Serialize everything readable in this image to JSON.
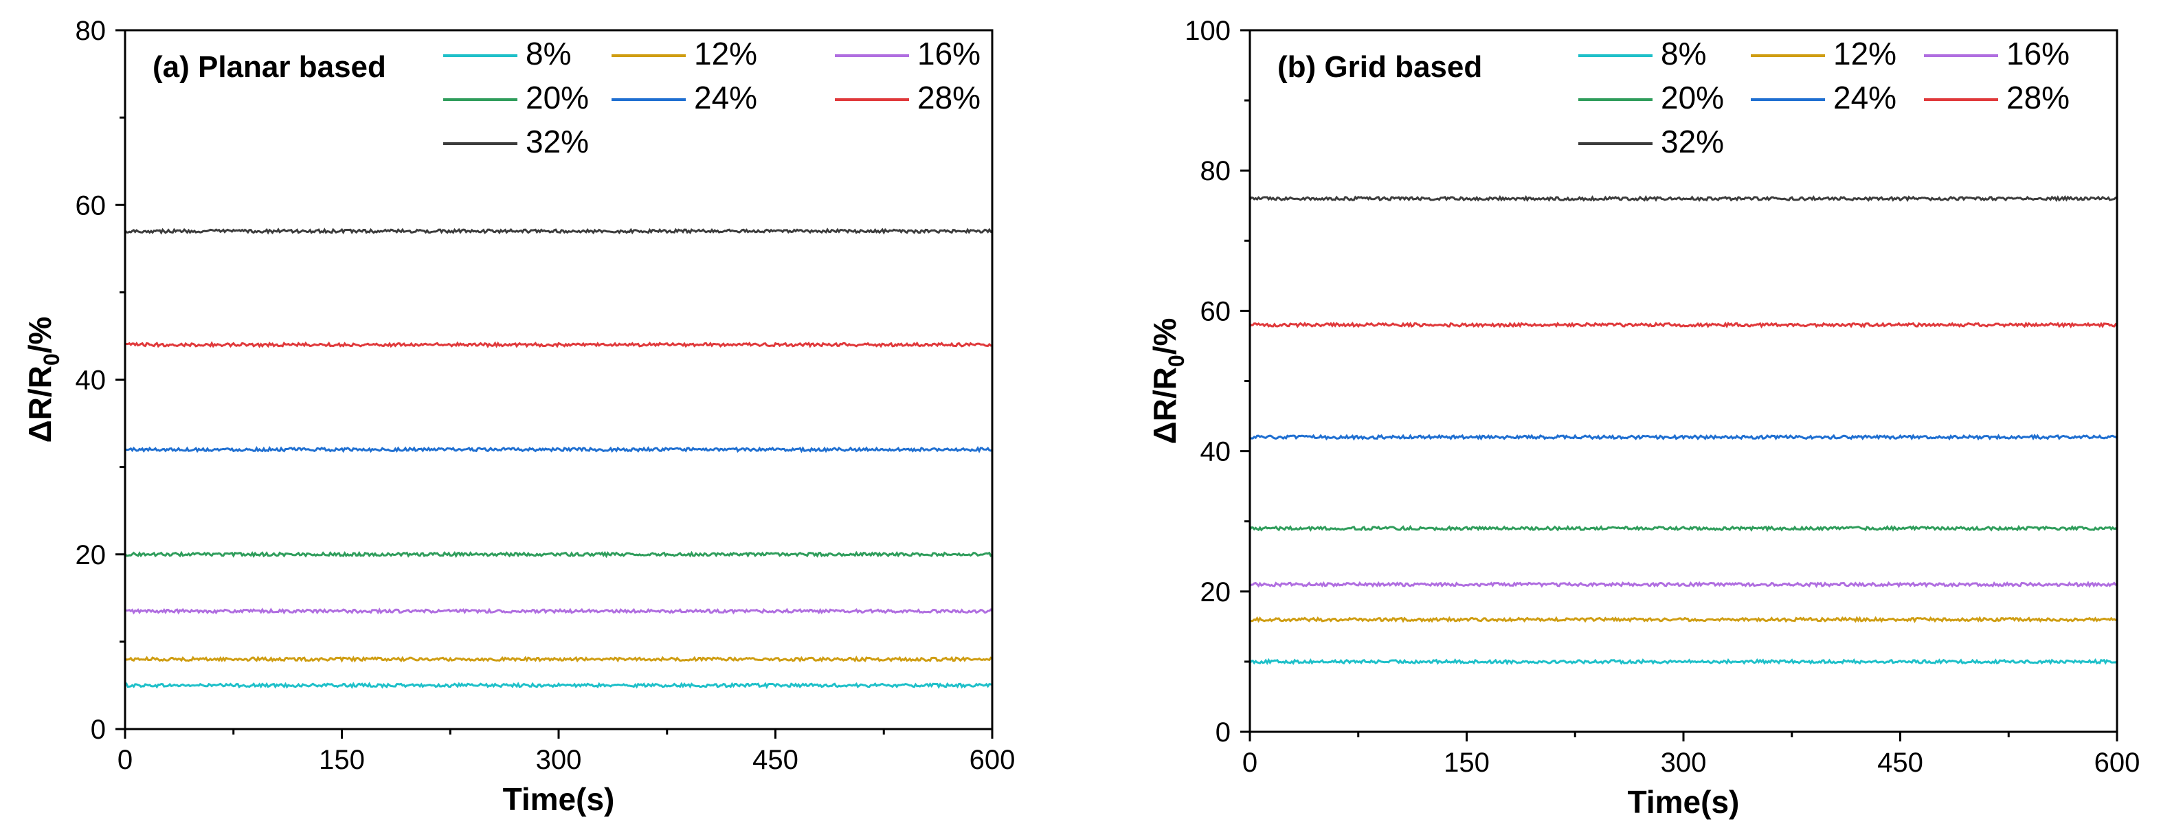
{
  "chart_data": [
    {
      "type": "line",
      "panel_label": "(a) Planar based",
      "xlabel": "Time(s)",
      "ylabel_main": "ΔR/R",
      "ylabel_sub": "0",
      "ylabel_tail": "/%",
      "xlim": [
        0,
        600
      ],
      "ylim": [
        0,
        80
      ],
      "xticks": [
        0,
        150,
        300,
        450,
        600
      ],
      "yticks": [
        0,
        20,
        40,
        60,
        80
      ],
      "legend_placement": "top-right",
      "series": [
        {
          "name": "8%",
          "color": "#1fc0c9",
          "value": 5
        },
        {
          "name": "12%",
          "color": "#cf9d12",
          "value": 8
        },
        {
          "name": "16%",
          "color": "#b06ee0",
          "value": 13.5
        },
        {
          "name": "20%",
          "color": "#2f9d5b",
          "value": 20
        },
        {
          "name": "24%",
          "color": "#1f6fd1",
          "value": 32
        },
        {
          "name": "28%",
          "color": "#e0393b",
          "value": 44
        },
        {
          "name": "32%",
          "color": "#3c3c3c",
          "value": 57
        }
      ]
    },
    {
      "type": "line",
      "panel_label": "(b) Grid based",
      "xlabel": "Time(s)",
      "ylabel_main": "ΔR/R",
      "ylabel_sub": "0",
      "ylabel_tail": "/%",
      "xlim": [
        0,
        600
      ],
      "ylim": [
        0,
        100
      ],
      "xticks": [
        0,
        150,
        300,
        450,
        600
      ],
      "yticks": [
        0,
        20,
        40,
        60,
        80,
        100
      ],
      "legend_placement": "top-right",
      "series": [
        {
          "name": "8%",
          "color": "#1fc0c9",
          "value": 10
        },
        {
          "name": "12%",
          "color": "#cf9d12",
          "value": 16
        },
        {
          "name": "16%",
          "color": "#b06ee0",
          "value": 21
        },
        {
          "name": "20%",
          "color": "#2f9d5b",
          "value": 29
        },
        {
          "name": "24%",
          "color": "#1f6fd1",
          "value": 42
        },
        {
          "name": "28%",
          "color": "#e0393b",
          "value": 58
        },
        {
          "name": "32%",
          "color": "#3c3c3c",
          "value": 76
        }
      ]
    }
  ]
}
